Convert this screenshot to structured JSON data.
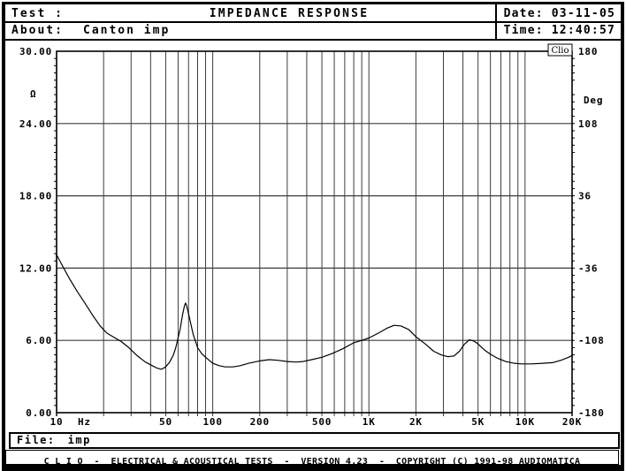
{
  "header": {
    "test_label": "Test :",
    "title": "IMPEDANCE RESPONSE",
    "date_label": "Date:",
    "date_value": "03-11-05",
    "date_line": "Date: 03-11-05",
    "about_label": "About:",
    "about_value": "Canton imp",
    "time_label": "Time:",
    "time_value": "12:40:57",
    "time_line": "Time: 12:40:57"
  },
  "chart_data": {
    "type": "line",
    "title": "IMPEDANCE RESPONSE",
    "badge": "Clio",
    "grid": true,
    "x_axis": {
      "label": "Hz",
      "scale": "log",
      "min": 10,
      "max": 20000,
      "ticks": [
        {
          "label": "10",
          "value": 10
        },
        {
          "label": "50",
          "value": 50
        },
        {
          "label": "100",
          "value": 100
        },
        {
          "label": "200",
          "value": 200
        },
        {
          "label": "500",
          "value": 500
        },
        {
          "label": "1K",
          "value": 1000
        },
        {
          "label": "2K",
          "value": 2000
        },
        {
          "label": "5K",
          "value": 5000
        },
        {
          "label": "10K",
          "value": 10000
        },
        {
          "label": "20K",
          "value": 20000
        }
      ],
      "gridlines": [
        20,
        30,
        40,
        50,
        60,
        70,
        80,
        90,
        100,
        200,
        300,
        400,
        500,
        600,
        700,
        800,
        900,
        1000,
        2000,
        3000,
        4000,
        5000,
        6000,
        7000,
        8000,
        9000,
        10000
      ]
    },
    "y_left": {
      "label": "Ω",
      "min": 0,
      "max": 30,
      "minor_step": 0.6,
      "ticks": [
        {
          "label": "30.00",
          "value": 30
        },
        {
          "label": "24.00",
          "value": 24
        },
        {
          "label": "18.00",
          "value": 18
        },
        {
          "label": "12.00",
          "value": 12
        },
        {
          "label": "6.00",
          "value": 6
        },
        {
          "label": "0.00",
          "value": 0
        }
      ],
      "gridlines": [
        6,
        12,
        18,
        24
      ]
    },
    "y_right": {
      "label": "Deg",
      "min": -180,
      "max": 180,
      "minor_step": 7.2,
      "ticks": [
        {
          "label": "180",
          "value": 180
        },
        {
          "label": "108",
          "value": 108
        },
        {
          "label": "36",
          "value": 36
        },
        {
          "label": "-36",
          "value": -36
        },
        {
          "label": "-108",
          "value": -108
        },
        {
          "label": "-180",
          "value": -180
        }
      ]
    },
    "series": [
      {
        "name": "impedance-magnitude",
        "unit": "ohm",
        "points": [
          [
            10,
            13.1
          ],
          [
            11,
            12.1
          ],
          [
            12,
            11.2
          ],
          [
            13.5,
            10.1
          ],
          [
            15,
            9.2
          ],
          [
            17,
            8.1
          ],
          [
            19,
            7.2
          ],
          [
            21,
            6.6
          ],
          [
            23,
            6.3
          ],
          [
            26,
            5.9
          ],
          [
            29,
            5.4
          ],
          [
            33,
            4.7
          ],
          [
            37,
            4.2
          ],
          [
            41,
            3.9
          ],
          [
            44,
            3.7
          ],
          [
            47,
            3.6
          ],
          [
            50,
            3.8
          ],
          [
            53,
            4.2
          ],
          [
            56,
            4.8
          ],
          [
            58,
            5.4
          ],
          [
            60,
            6.2
          ],
          [
            62,
            7.0
          ],
          [
            64,
            8.1
          ],
          [
            66,
            8.9
          ],
          [
            67,
            9.1
          ],
          [
            68,
            8.9
          ],
          [
            70,
            8.2
          ],
          [
            72,
            7.5
          ],
          [
            75,
            6.5
          ],
          [
            80,
            5.4
          ],
          [
            85,
            4.9
          ],
          [
            90,
            4.6
          ],
          [
            100,
            4.1
          ],
          [
            110,
            3.9
          ],
          [
            120,
            3.8
          ],
          [
            135,
            3.8
          ],
          [
            150,
            3.9
          ],
          [
            170,
            4.1
          ],
          [
            200,
            4.3
          ],
          [
            230,
            4.4
          ],
          [
            260,
            4.35
          ],
          [
            300,
            4.25
          ],
          [
            340,
            4.2
          ],
          [
            380,
            4.25
          ],
          [
            430,
            4.4
          ],
          [
            500,
            4.6
          ],
          [
            580,
            4.9
          ],
          [
            680,
            5.3
          ],
          [
            800,
            5.8
          ],
          [
            900,
            6.0
          ],
          [
            1000,
            6.2
          ],
          [
            1150,
            6.6
          ],
          [
            1300,
            7.0
          ],
          [
            1450,
            7.25
          ],
          [
            1600,
            7.2
          ],
          [
            1800,
            6.9
          ],
          [
            2000,
            6.3
          ],
          [
            2300,
            5.7
          ],
          [
            2600,
            5.1
          ],
          [
            2900,
            4.8
          ],
          [
            3200,
            4.65
          ],
          [
            3500,
            4.7
          ],
          [
            3800,
            5.1
          ],
          [
            4100,
            5.7
          ],
          [
            4400,
            6.05
          ],
          [
            4700,
            5.95
          ],
          [
            5000,
            5.7
          ],
          [
            5500,
            5.2
          ],
          [
            6000,
            4.85
          ],
          [
            6700,
            4.5
          ],
          [
            7500,
            4.25
          ],
          [
            8500,
            4.1
          ],
          [
            9500,
            4.05
          ],
          [
            11000,
            4.05
          ],
          [
            13000,
            4.1
          ],
          [
            15000,
            4.15
          ],
          [
            17000,
            4.35
          ],
          [
            19000,
            4.6
          ],
          [
            20000,
            4.75
          ]
        ]
      }
    ],
    "colors": {
      "line": "#000000",
      "grid": "#3c3c3c",
      "frame": "#000000",
      "background": "#ffffff"
    }
  },
  "file_bar": {
    "label": "File:",
    "value": "imp"
  },
  "footer": {
    "text": "C L I O  -  ELECTRICAL & ACOUSTICAL TESTS  -  VERSION 4.23  -  COPYRIGHT (C) 1991-98 AUDIOMATICA"
  }
}
